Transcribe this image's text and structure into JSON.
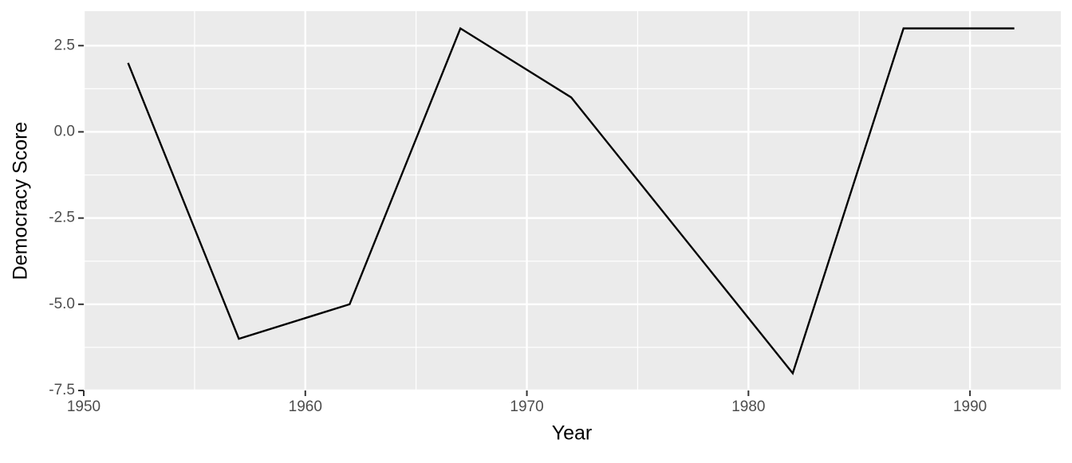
{
  "chart_data": {
    "type": "line",
    "x_label": "Year",
    "y_label": "Democracy Score",
    "x": [
      1952,
      1957,
      1962,
      1967,
      1972,
      1982,
      1987,
      1992
    ],
    "values": [
      2,
      -6,
      -5,
      3,
      1,
      -7,
      3,
      3
    ],
    "color": "#000000",
    "xlim": [
      1950,
      1994.1
    ],
    "xticks": [
      1950,
      1960,
      1970,
      1980,
      1990
    ],
    "ylim": [
      -7.5,
      3.5
    ],
    "yticks": [
      -7.5,
      {
        "value": -5,
        "label": "-5.0"
      },
      -2.5,
      {
        "value": 0,
        "label": "0.0"
      },
      2.5
    ],
    "grid": true
  }
}
